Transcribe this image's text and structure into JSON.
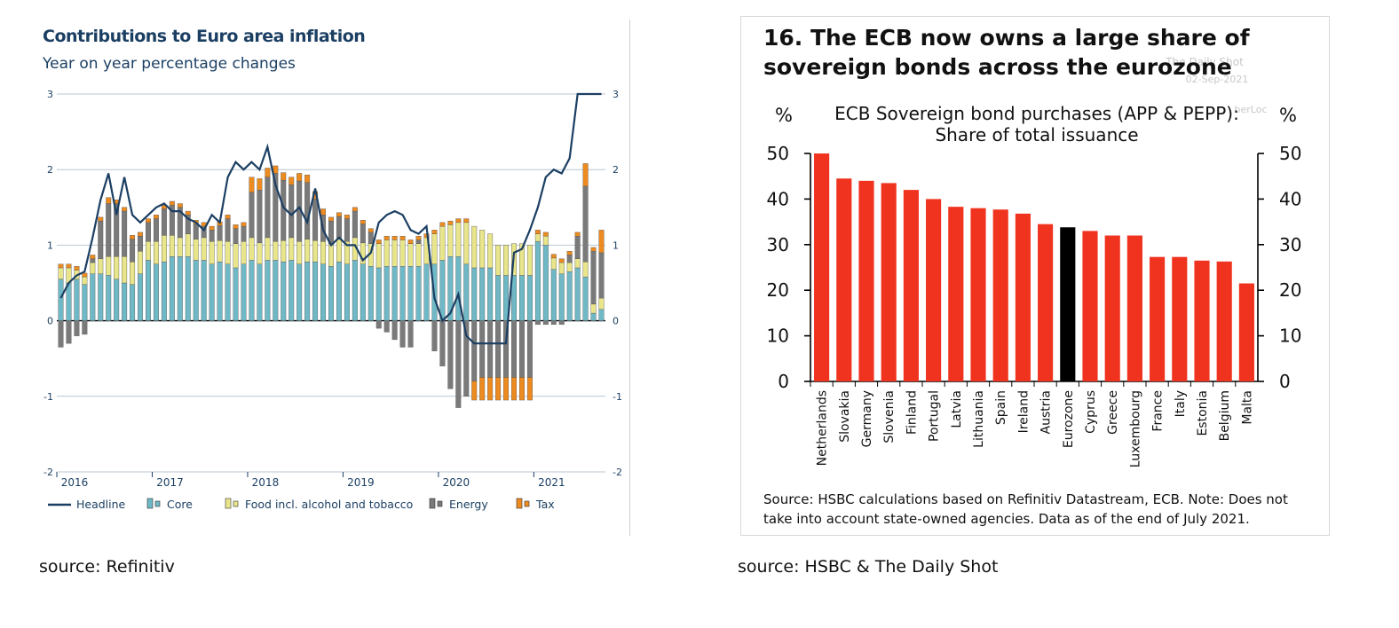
{
  "left_source": "source: Refinitiv",
  "right_source": "source: HSBC & The Daily Shot",
  "chart_data": [
    {
      "type": "bar",
      "stacked": true,
      "title": "Contributions to Euro area inflation",
      "subtitle": "Year on year percentage changes",
      "xlabel": "",
      "ylabel": "",
      "ylim": [
        -2,
        3
      ],
      "y_ticks": [
        "3",
        "2",
        "1",
        "0",
        "-1",
        "-2"
      ],
      "x_tick_labels": [
        "2016",
        "2017",
        "2018",
        "2019",
        "2020",
        "2021"
      ],
      "grid": true,
      "legend_position": "bottom",
      "categories": [
        "2016-01",
        "2016-02",
        "2016-03",
        "2016-04",
        "2016-05",
        "2016-06",
        "2016-07",
        "2016-08",
        "2016-09",
        "2016-10",
        "2016-11",
        "2016-12",
        "2017-01",
        "2017-02",
        "2017-03",
        "2017-04",
        "2017-05",
        "2017-06",
        "2017-07",
        "2017-08",
        "2017-09",
        "2017-10",
        "2017-11",
        "2017-12",
        "2018-01",
        "2018-02",
        "2018-03",
        "2018-04",
        "2018-05",
        "2018-06",
        "2018-07",
        "2018-08",
        "2018-09",
        "2018-10",
        "2018-11",
        "2018-12",
        "2019-01",
        "2019-02",
        "2019-03",
        "2019-04",
        "2019-05",
        "2019-06",
        "2019-07",
        "2019-08",
        "2019-09",
        "2019-10",
        "2019-11",
        "2019-12",
        "2020-01",
        "2020-02",
        "2020-03",
        "2020-04",
        "2020-05",
        "2020-06",
        "2020-07",
        "2020-08",
        "2020-09",
        "2020-10",
        "2020-11",
        "2020-12",
        "2021-01",
        "2021-02",
        "2021-03",
        "2021-04",
        "2021-05",
        "2021-06",
        "2021-07",
        "2021-08",
        "2021-09"
      ],
      "series": [
        {
          "name": "Core",
          "color": "#6fb8c6",
          "values": [
            0.55,
            0.5,
            0.55,
            0.48,
            0.62,
            0.62,
            0.6,
            0.55,
            0.5,
            0.48,
            0.62,
            0.8,
            0.75,
            0.78,
            0.85,
            0.85,
            0.85,
            0.8,
            0.8,
            0.75,
            0.78,
            0.75,
            0.7,
            0.75,
            0.8,
            0.75,
            0.8,
            0.8,
            0.78,
            0.8,
            0.75,
            0.78,
            0.78,
            0.75,
            0.72,
            0.78,
            0.75,
            0.8,
            0.75,
            0.72,
            0.7,
            0.72,
            0.72,
            0.72,
            0.72,
            0.72,
            0.75,
            0.75,
            0.8,
            0.85,
            0.85,
            0.75,
            0.7,
            0.7,
            0.7,
            0.6,
            0.6,
            0.6,
            0.6,
            0.6,
            1.05,
            1.0,
            0.68,
            0.62,
            0.65,
            0.7,
            0.58,
            0.1,
            0.15
          ]
        },
        {
          "name": "Food incl. alcohol and tobacco",
          "color": "#e8e58a",
          "values": [
            0.15,
            0.2,
            0.12,
            0.1,
            0.15,
            0.2,
            0.25,
            0.3,
            0.35,
            0.3,
            0.3,
            0.25,
            0.3,
            0.35,
            0.28,
            0.25,
            0.3,
            0.28,
            0.3,
            0.3,
            0.28,
            0.3,
            0.32,
            0.3,
            0.3,
            0.28,
            0.3,
            0.25,
            0.28,
            0.3,
            0.3,
            0.3,
            0.28,
            0.3,
            0.3,
            0.3,
            0.3,
            0.3,
            0.28,
            0.3,
            0.32,
            0.35,
            0.35,
            0.35,
            0.3,
            0.3,
            0.35,
            0.4,
            0.45,
            0.42,
            0.45,
            0.55,
            0.55,
            0.5,
            0.45,
            0.4,
            0.4,
            0.42,
            0.42,
            0.4,
            0.1,
            0.12,
            0.15,
            0.15,
            0.12,
            0.12,
            0.2,
            0.12,
            0.15
          ]
        },
        {
          "name": "Energy",
          "color": "#7a7a7a",
          "values": [
            -0.35,
            -0.3,
            -0.2,
            -0.18,
            0.05,
            0.5,
            0.7,
            0.7,
            0.6,
            0.3,
            0.2,
            0.25,
            0.3,
            0.35,
            0.4,
            0.4,
            0.25,
            0.2,
            0.15,
            0.15,
            0.2,
            0.3,
            0.2,
            0.2,
            0.6,
            0.7,
            0.8,
            0.9,
            0.8,
            0.7,
            0.8,
            0.75,
            0.55,
            0.35,
            0.3,
            0.3,
            0.3,
            0.35,
            0.25,
            0.15,
            -0.1,
            -0.15,
            -0.25,
            -0.35,
            -0.35,
            0.05,
            0.0,
            -0.4,
            -0.6,
            -0.9,
            -1.15,
            -1.0,
            -0.8,
            -0.75,
            -0.75,
            -0.75,
            -0.75,
            -0.75,
            -0.75,
            -0.75,
            -0.05,
            -0.05,
            -0.05,
            -0.05,
            0.1,
            0.3,
            1.0,
            0.7,
            0.6
          ]
        },
        {
          "name": "Tax",
          "color": "#ee8b1e",
          "values": [
            0.05,
            0.05,
            0.05,
            0.05,
            0.05,
            0.05,
            0.08,
            0.05,
            0.05,
            0.05,
            0.05,
            0.05,
            0.05,
            0.05,
            0.05,
            0.05,
            0.05,
            0.05,
            0.05,
            0.05,
            0.05,
            0.05,
            0.05,
            0.05,
            0.2,
            0.15,
            0.12,
            0.1,
            0.1,
            0.1,
            0.1,
            0.1,
            0.1,
            0.08,
            0.05,
            0.05,
            0.05,
            0.05,
            0.05,
            0.05,
            0.05,
            0.05,
            0.05,
            0.05,
            0.05,
            0.05,
            0.05,
            0.05,
            0.05,
            0.05,
            0.05,
            0.05,
            -0.25,
            -0.3,
            -0.3,
            -0.3,
            -0.3,
            -0.3,
            -0.3,
            -0.3,
            0.05,
            0.05,
            0.05,
            0.05,
            0.05,
            0.05,
            0.3,
            0.05,
            0.3
          ]
        },
        {
          "name": "Headline",
          "color": "#1b3f63",
          "type": "line",
          "values": [
            0.3,
            0.5,
            0.6,
            0.65,
            1.1,
            1.6,
            1.95,
            1.4,
            1.9,
            1.4,
            1.3,
            1.4,
            1.5,
            1.55,
            1.45,
            1.45,
            1.35,
            1.3,
            1.2,
            1.4,
            1.3,
            1.9,
            2.1,
            2.0,
            2.1,
            2.0,
            2.3,
            1.8,
            1.5,
            1.4,
            1.5,
            1.3,
            1.75,
            1.2,
            1.0,
            1.1,
            1.0,
            1.0,
            0.8,
            0.9,
            1.3,
            1.4,
            1.45,
            1.4,
            1.2,
            1.15,
            1.25,
            0.3,
            0.0,
            0.1,
            0.35,
            -0.2,
            -0.3,
            -0.3,
            -0.3,
            -0.3,
            -0.3,
            0.9,
            0.95,
            1.2,
            1.5,
            1.9,
            2.0,
            1.95,
            2.15,
            3.0,
            3.0,
            3.0,
            3.0
          ]
        }
      ],
      "legend": [
        {
          "label": "Headline",
          "color": "#1b3f63",
          "kind": "line"
        },
        {
          "label": "Core",
          "color": "#6fb8c6",
          "kind": "box"
        },
        {
          "label": "Food incl. alcohol and tobacco",
          "color": "#e8e58a",
          "kind": "box"
        },
        {
          "label": "Energy",
          "color": "#7a7a7a",
          "kind": "box"
        },
        {
          "label": "Tax",
          "color": "#ee8b1e",
          "kind": "box"
        }
      ]
    },
    {
      "type": "bar",
      "title": "16. The ECB now owns a large share of sovereign bonds across the eurozone",
      "title_lines": [
        "16. The ECB now owns a large share of",
        "sovereign bonds across the eurozone"
      ],
      "subtitle_lines": [
        "ECB Sovereign bond purchases (APP & PEPP):",
        "Share of total issuance"
      ],
      "ylabel": "%",
      "ylabel_right": "%",
      "ylim": [
        0,
        50
      ],
      "y_ticks": [
        "50",
        "40",
        "30",
        "20",
        "10",
        "0"
      ],
      "watermark_lines": [
        "The Daily Shot",
        "02-Sep-2021",
        "berLoc"
      ],
      "categories": [
        "Netherlands",
        "Slovakia",
        "Germany",
        "Slovenia",
        "Finland",
        "Portugal",
        "Latvia",
        "Lithuania",
        "Spain",
        "Ireland",
        "Austria",
        "Eurozone",
        "Cyprus",
        "Greece",
        "Luxembourg",
        "France",
        "Italy",
        "Estonia",
        "Belgium",
        "Malta"
      ],
      "values": [
        50,
        44.5,
        44,
        43.5,
        42,
        40,
        38.3,
        38,
        37.7,
        36.8,
        34.5,
        33.8,
        33,
        32,
        32,
        27.3,
        27.3,
        26.5,
        26.3,
        21.5
      ],
      "colors": {
        "default": "#f0331f",
        "highlight": "#000000"
      },
      "highlight": "Eurozone",
      "footnote_lines": [
        "Source: HSBC calculations based on Refinitiv Datastream, ECB. Note: Does not",
        "take into account state-owned agencies. Data as of the end of July 2021."
      ]
    }
  ]
}
